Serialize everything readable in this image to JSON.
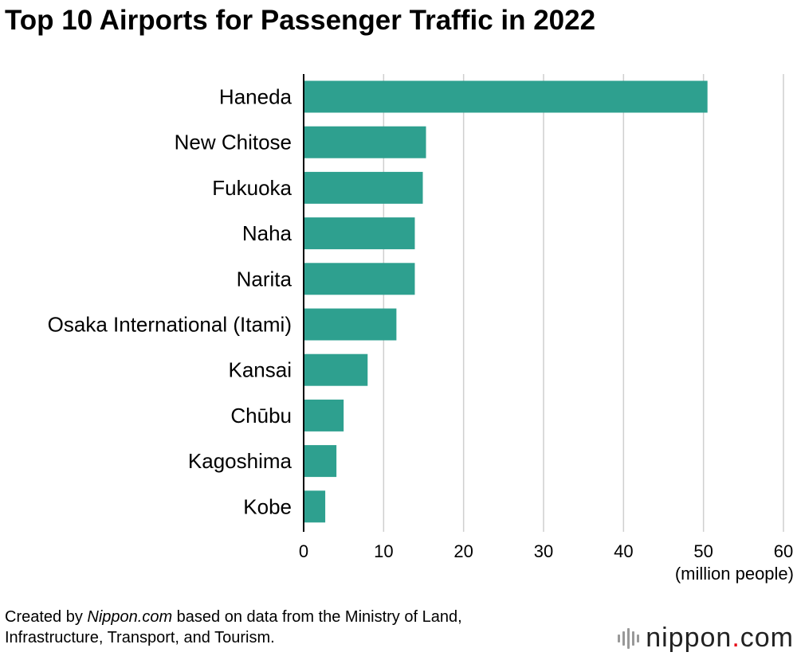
{
  "chart_data": {
    "type": "bar",
    "orientation": "horizontal",
    "title": "Top 10 Airports for Passenger Traffic in 2022",
    "categories": [
      "Haneda",
      "New Chitose",
      "Fukuoka",
      "Naha",
      "Narita",
      "Osaka International (Itami)",
      "Kansai",
      "Chūbu",
      "Kagoshima",
      "Kobe"
    ],
    "values": [
      50.5,
      15.3,
      14.9,
      13.9,
      13.9,
      11.6,
      8.0,
      5.0,
      4.1,
      2.7
    ],
    "xlim": [
      0,
      60
    ],
    "xticks": [
      "0",
      "10",
      "20",
      "30",
      "40",
      "50",
      "60"
    ],
    "xlabel": "(million people)",
    "ylabel": "",
    "grid": true,
    "bar_color": "#2ea08f"
  },
  "footer": {
    "prefix": "Created by ",
    "source_name": "Nippon.com",
    "suffix": " based on data from the Ministry of Land,",
    "line2": "Infrastructure, Transport, and Tourism."
  },
  "brand": {
    "name": "nippon",
    "dot": ".",
    "suffix": "com",
    "logo_icon": "nippon-logo-bars-icon",
    "dot_color": "#e60012"
  }
}
